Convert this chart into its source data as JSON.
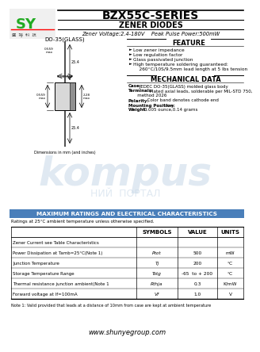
{
  "title": "BZX55C-SERIES",
  "subtitle": "ZENER DIODES",
  "subtitle2": "Zener Voltage:2.4-180V    Peak Pulse Power:500mW",
  "bg_color": "#ffffff",
  "feature_header": "FEATURE",
  "feature_items": [
    "Low zener impedance",
    "Low regulation factor",
    "Glass passivated junction",
    "High temperature soldering guaranteed:\n    260°C/10S/9.5mm lead length at 5 lbs tension"
  ],
  "mech_header": "MECHANICAL DATA",
  "mech_items": [
    [
      "Case:",
      " JEDEC DO-35(GLASS) molded glass body"
    ],
    [
      "Terminals:",
      " Plated axial leads, solderable per MIL-STD 750,\n   method 2026"
    ],
    [
      "Polarity:",
      " Color band denotes cathode end"
    ],
    [
      "Mounting Position:",
      " Any"
    ],
    [
      "Weight:",
      " 0.005 ounce,0.14 grams"
    ]
  ],
  "section_header": "MAXIMUM RATINGS AND ELECTRICAL CHARACTERISTICS",
  "ratings_note": "Ratings at 25°C ambient temperature unless otherwise specified.",
  "table_headers": [
    "",
    "SYMBOLS",
    "VALUE",
    "UNITS"
  ],
  "table_rows": [
    [
      "Zener Current see Table Characteristics",
      "",
      "",
      ""
    ],
    [
      "Power Dissipation at Tamb=25°C(Note 1)",
      "Ptot",
      "500",
      "mW"
    ],
    [
      "Junction Temperature",
      "Tj",
      "200",
      "°C"
    ],
    [
      "Storage Temperature Range",
      "Tstg",
      "-65  to + 200",
      "°C"
    ],
    [
      "Thermal resistance junction ambient(Note 1",
      "Rthja",
      "0.3",
      "K/mW"
    ],
    [
      "Forward voltage at If=100mA",
      "Vf",
      "1.0",
      "V"
    ]
  ],
  "note": "Note 1: Valid provided that leads at a distance of 10mm from case are kept at ambient temperature",
  "website": "www.shunyegroup.com",
  "watermark_text": "kompus",
  "watermark_color": "#c8d8e8",
  "section_bar_color": "#4a7fba"
}
